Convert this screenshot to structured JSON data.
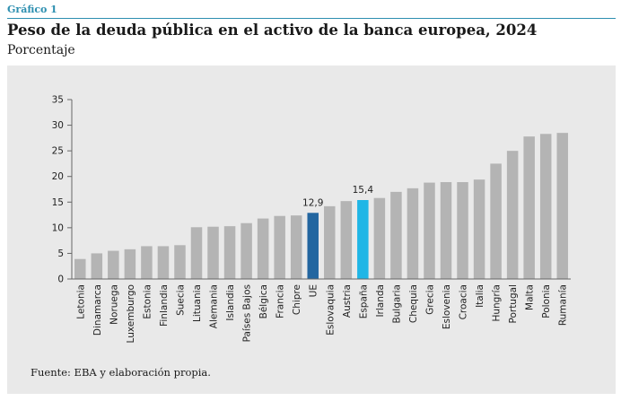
{
  "header": {
    "label": "Gráfico 1",
    "title": "Peso de la deuda pública en el activo de la banca europea, 2024",
    "subtitle": "Porcentaje"
  },
  "footer": {
    "source": "Fuente: EBA y elaboración propia."
  },
  "colors": {
    "accent": "#2d8fb0",
    "panel": "#e9e9e9",
    "bar_default": "#b4b4b4",
    "bar_eu": "#2366a0",
    "bar_spain": "#1fb6e6"
  },
  "chart_data": {
    "type": "bar",
    "title": "Peso de la deuda pública en el activo de la banca europea, 2024",
    "ylabel": "Porcentaje",
    "ylim": [
      0,
      35
    ],
    "yticks": [
      0,
      5,
      10,
      15,
      20,
      25,
      30,
      35
    ],
    "grid": false,
    "categories": [
      "Letonia",
      "Dinamarca",
      "Noruega",
      "Luxemburgo",
      "Estonia",
      "Finlandia",
      "Suecia",
      "Lituania",
      "Alemania",
      "Islandia",
      "Países Bajos",
      "Bélgica",
      "Francia",
      "Chipre",
      "UE",
      "Eslovaquia",
      "Austria",
      "España",
      "Irlanda",
      "Bulgaria",
      "Chequia",
      "Grecia",
      "Eslovenia",
      "Croacia",
      "Italia",
      "Hungría",
      "Portugal",
      "Malta",
      "Polonia",
      "Rumanía"
    ],
    "values": [
      3.9,
      5.0,
      5.5,
      5.8,
      6.4,
      6.4,
      6.6,
      10.1,
      10.2,
      10.3,
      10.9,
      11.8,
      12.3,
      12.4,
      12.9,
      14.2,
      15.2,
      15.4,
      15.8,
      17.0,
      17.7,
      18.8,
      18.9,
      18.9,
      19.4,
      22.5,
      25.0,
      27.8,
      28.3,
      28.5
    ],
    "highlights": [
      {
        "category": "UE",
        "color": "#2366a0",
        "label": "12,9"
      },
      {
        "category": "España",
        "color": "#1fb6e6",
        "label": "15,4"
      }
    ]
  }
}
